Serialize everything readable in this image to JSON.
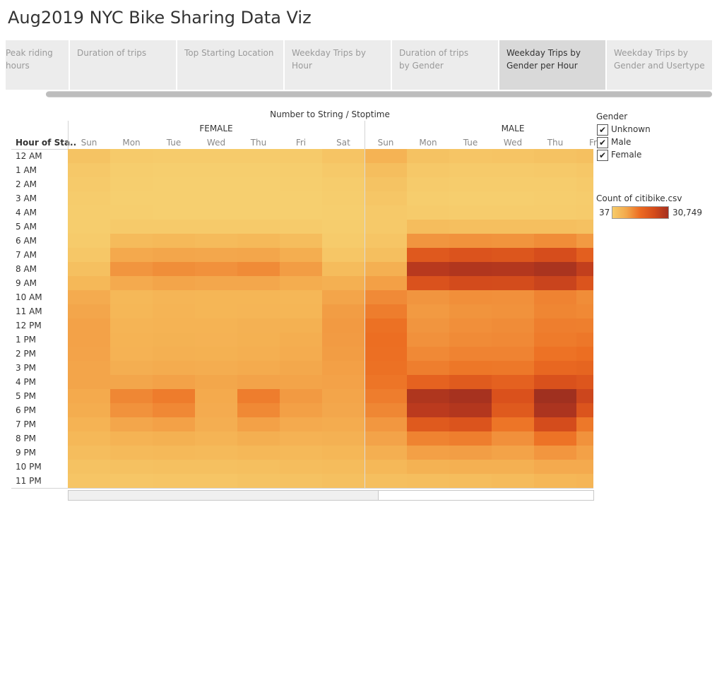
{
  "app": {
    "title": "Aug2019 NYC Bike Sharing Data Viz"
  },
  "tabs": [
    {
      "label": "Peak riding hours",
      "active": false
    },
    {
      "label": "Duration of trips",
      "active": false
    },
    {
      "label": "Top Starting Location",
      "active": false
    },
    {
      "label": "Weekday Trips by Hour",
      "active": false
    },
    {
      "label": "Duration of trips by Gender",
      "active": false
    },
    {
      "label": "Weekday Trips by Gender per Hour",
      "active": true
    },
    {
      "label": "Weekday Trips by Gender and Usertype",
      "active": false
    }
  ],
  "chart_data": {
    "type": "heatmap",
    "title": "Number to String / Stoptime",
    "row_header": "Hour of Sta..",
    "groups": [
      "FEMALE",
      "MALE"
    ],
    "days": [
      "Sun",
      "Mon",
      "Tue",
      "Wed",
      "Thu",
      "Fri",
      "Sat"
    ],
    "visible_columns": [
      {
        "group": "FEMALE",
        "day": "Sun"
      },
      {
        "group": "FEMALE",
        "day": "Mon"
      },
      {
        "group": "FEMALE",
        "day": "Tue"
      },
      {
        "group": "FEMALE",
        "day": "Wed"
      },
      {
        "group": "FEMALE",
        "day": "Thu"
      },
      {
        "group": "FEMALE",
        "day": "Fri"
      },
      {
        "group": "FEMALE",
        "day": "Sat"
      },
      {
        "group": "MALE",
        "day": "Sun"
      },
      {
        "group": "MALE",
        "day": "Mon"
      },
      {
        "group": "MALE",
        "day": "Tue"
      },
      {
        "group": "MALE",
        "day": "Wed"
      },
      {
        "group": "MALE",
        "day": "Thu"
      },
      {
        "group": "MALE",
        "day": "Fri"
      }
    ],
    "hours": [
      "12 AM",
      "1 AM",
      "2 AM",
      "3 AM",
      "4 AM",
      "5 AM",
      "6 AM",
      "7 AM",
      "8 AM",
      "9 AM",
      "10 AM",
      "11 AM",
      "12 PM",
      "1 PM",
      "2 PM",
      "3 PM",
      "4 PM",
      "5 PM",
      "6 PM",
      "7 PM",
      "8 PM",
      "9 PM",
      "10 PM",
      "11 PM"
    ],
    "values": [
      [
        2600,
        1300,
        1000,
        1100,
        1100,
        1300,
        2400,
        5800,
        3000,
        2300,
        2500,
        2900,
        3300
      ],
      [
        1700,
        700,
        500,
        500,
        500,
        700,
        1500,
        3800,
        1700,
        1200,
        1300,
        1500,
        1800
      ],
      [
        1200,
        400,
        300,
        300,
        300,
        400,
        900,
        2800,
        1000,
        800,
        800,
        900,
        1200
      ],
      [
        800,
        300,
        200,
        200,
        200,
        300,
        600,
        2000,
        700,
        500,
        500,
        600,
        800
      ],
      [
        600,
        400,
        300,
        300,
        300,
        300,
        400,
        1400,
        1000,
        800,
        800,
        900,
        1000
      ],
      [
        600,
        1300,
        1200,
        1200,
        1200,
        1100,
        600,
        1400,
        3900,
        3500,
        3500,
        3500,
        3200
      ],
      [
        1000,
        4400,
        4700,
        4400,
        4700,
        3900,
        1100,
        2200,
        10800,
        11200,
        11000,
        11800,
        10300
      ],
      [
        1800,
        7600,
        8200,
        7900,
        8200,
        6800,
        2100,
        3600,
        18800,
        19800,
        19400,
        20900,
        17800
      ],
      [
        3300,
        10800,
        11700,
        11300,
        12000,
        9800,
        4200,
        6400,
        25900,
        27200,
        26800,
        28600,
        24200
      ],
      [
        5000,
        7400,
        8300,
        7900,
        7900,
        7000,
        6400,
        9200,
        20000,
        21400,
        21300,
        23000,
        19700
      ],
      [
        7200,
        5000,
        5500,
        5300,
        5400,
        5100,
        8400,
        12100,
        10800,
        11500,
        11400,
        12900,
        11800
      ],
      [
        8200,
        5100,
        5600,
        5400,
        5500,
        5300,
        9800,
        13700,
        10300,
        11000,
        11200,
        12600,
        12300
      ],
      [
        8800,
        5700,
        5900,
        5800,
        6200,
        6300,
        10300,
        15100,
        10800,
        11500,
        11900,
        13500,
        13400
      ],
      [
        8900,
        5800,
        6100,
        6000,
        6300,
        6800,
        10100,
        15400,
        11300,
        12000,
        12200,
        13900,
        14300
      ],
      [
        8600,
        6000,
        6400,
        6300,
        6600,
        7100,
        9800,
        15300,
        12200,
        12900,
        12900,
        14900,
        15400
      ],
      [
        8400,
        6700,
        7100,
        6900,
        7300,
        7800,
        9300,
        15100,
        13500,
        14400,
        14200,
        16500,
        16900
      ],
      [
        8300,
        8200,
        8800,
        8000,
        8600,
        8500,
        8900,
        14600,
        17300,
        18600,
        17500,
        20200,
        19300
      ],
      [
        7500,
        12500,
        13800,
        7500,
        13600,
        10200,
        8300,
        13600,
        27600,
        29400,
        20100,
        30700,
        22500
      ],
      [
        7000,
        11200,
        12400,
        7200,
        12300,
        9300,
        7900,
        12500,
        25300,
        26900,
        18700,
        28300,
        19700
      ],
      [
        5900,
        8200,
        9000,
        6700,
        9100,
        7400,
        7100,
        10600,
        18700,
        19700,
        14600,
        21200,
        14200
      ],
      [
        4900,
        5800,
        6300,
        5700,
        6500,
        6000,
        6200,
        8600,
        13000,
        13500,
        11400,
        14800,
        11200
      ],
      [
        3900,
        4500,
        4700,
        4500,
        4900,
        4800,
        5100,
        6600,
        9300,
        9600,
        8700,
        10700,
        9100
      ],
      [
        3000,
        3100,
        3300,
        3400,
        3600,
        3900,
        4200,
        5000,
        6100,
        6400,
        6400,
        7400,
        7400
      ],
      [
        2300,
        2000,
        2200,
        2300,
        2600,
        2900,
        3300,
        3600,
        3700,
        4000,
        4300,
        5100,
        5500
      ]
    ],
    "color_min": 37,
    "color_max": 30749,
    "color_stops": [
      "#f6d070",
      "#f5b757",
      "#f29a42",
      "#ec6e22",
      "#d84f1c",
      "#b9391e",
      "#a0301f"
    ]
  },
  "legend": {
    "gender_title": "Gender",
    "gender_items": [
      {
        "label": "Unknown",
        "checked": true
      },
      {
        "label": "Male",
        "checked": true
      },
      {
        "label": "Female",
        "checked": true
      }
    ],
    "count_title": "Count of citibike.csv",
    "count_min": "37",
    "count_max": "30,749",
    "check_glyph": "✔"
  }
}
